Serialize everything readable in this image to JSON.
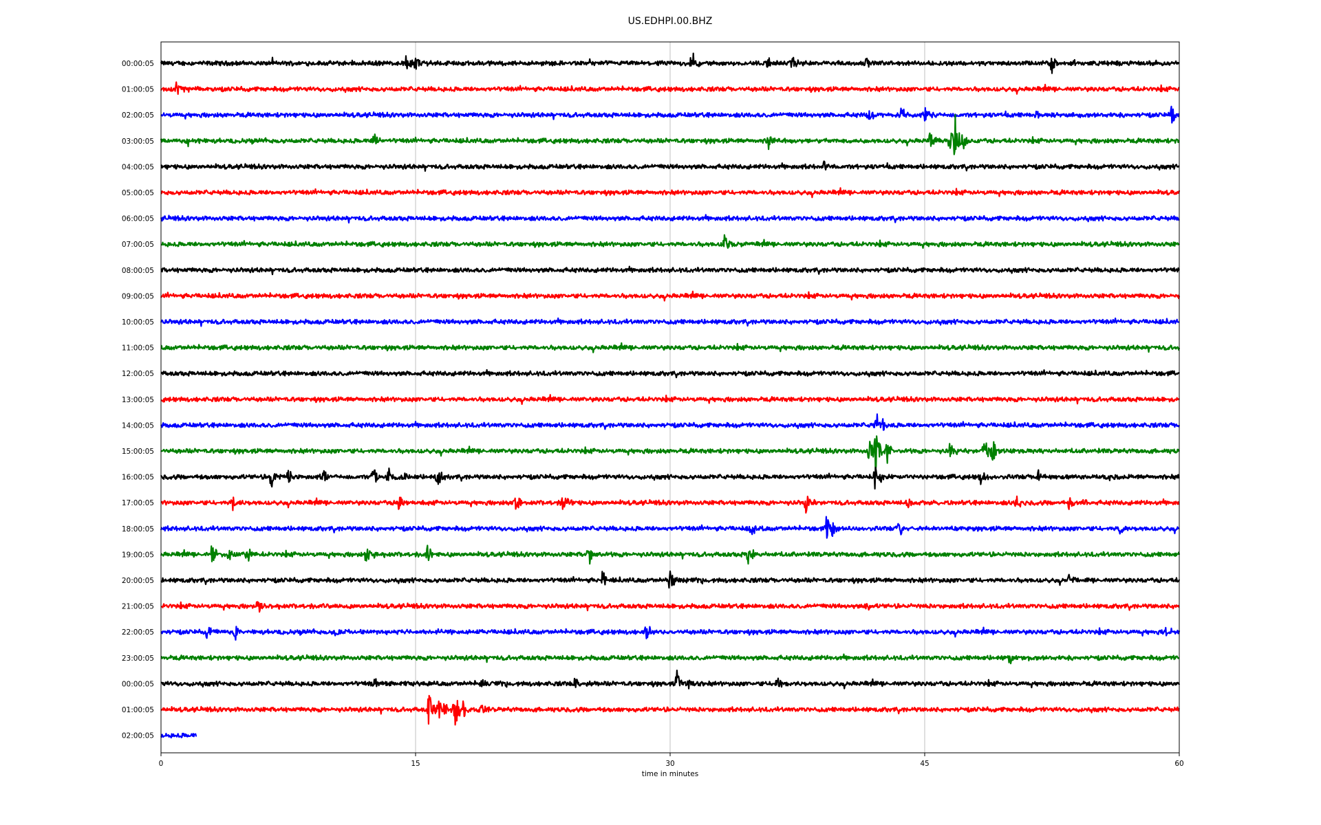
{
  "chart_data": {
    "type": "line",
    "title": "US.EDHPI.00.BHZ",
    "xlabel": "time in minutes",
    "ylabel": "",
    "xlim": [
      0,
      60
    ],
    "xticks": [
      "0",
      "15",
      "30",
      "45",
      "60"
    ],
    "xtick_values": [
      0,
      15,
      30,
      45,
      60
    ],
    "grid": "vertical",
    "trace_colors": [
      "#000000",
      "#ff0000",
      "#0000ff",
      "#008000"
    ],
    "series": [
      {
        "label": "00:00:05",
        "duration_min": 60,
        "events": [
          [
            14.5,
            0.6
          ],
          [
            15.0,
            0.5
          ],
          [
            31.3,
            0.9
          ],
          [
            35.7,
            0.5
          ],
          [
            37.2,
            0.5
          ],
          [
            41.6,
            0.5
          ],
          [
            52.5,
            0.8
          ]
        ]
      },
      {
        "label": "01:00:05",
        "duration_min": 60,
        "events": [
          [
            0.9,
            0.6
          ]
        ]
      },
      {
        "label": "02:00:05",
        "duration_min": 60,
        "events": [
          [
            41.7,
            0.5
          ],
          [
            43.6,
            0.4
          ],
          [
            45.0,
            0.6
          ],
          [
            51.6,
            0.5
          ],
          [
            59.5,
            0.8
          ]
        ]
      },
      {
        "label": "03:00:05",
        "duration_min": 60,
        "events": [
          [
            1.6,
            0.4
          ],
          [
            12.6,
            0.6
          ],
          [
            35.8,
            0.6
          ],
          [
            45.3,
            0.6
          ],
          [
            46.5,
            1.0
          ],
          [
            46.8,
            2.1
          ],
          [
            47.2,
            0.8
          ]
        ]
      },
      {
        "label": "04:00:05",
        "duration_min": 60,
        "events": [
          [
            39.0,
            0.4
          ]
        ]
      },
      {
        "label": "05:00:05",
        "duration_min": 60,
        "events": []
      },
      {
        "label": "06:00:05",
        "duration_min": 60,
        "events": []
      },
      {
        "label": "07:00:05",
        "duration_min": 60,
        "events": [
          [
            33.2,
            0.6
          ]
        ]
      },
      {
        "label": "08:00:05",
        "duration_min": 60,
        "events": []
      },
      {
        "label": "09:00:05",
        "duration_min": 60,
        "events": []
      },
      {
        "label": "10:00:05",
        "duration_min": 60,
        "events": []
      },
      {
        "label": "11:00:05",
        "duration_min": 60,
        "events": []
      },
      {
        "label": "12:00:05",
        "duration_min": 60,
        "events": []
      },
      {
        "label": "13:00:05",
        "duration_min": 60,
        "events": []
      },
      {
        "label": "14:00:05",
        "duration_min": 60,
        "events": [
          [
            42.1,
            1.2
          ],
          [
            42.4,
            0.8
          ]
        ]
      },
      {
        "label": "15:00:05",
        "duration_min": 60,
        "events": [
          [
            41.7,
            0.9
          ],
          [
            42.1,
            1.5
          ],
          [
            42.8,
            0.8
          ],
          [
            46.5,
            0.5
          ],
          [
            48.5,
            0.9
          ],
          [
            49.0,
            0.8
          ]
        ]
      },
      {
        "label": "16:00:05",
        "duration_min": 60,
        "events": [
          [
            6.5,
            0.8
          ],
          [
            7.5,
            0.5
          ],
          [
            9.6,
            0.5
          ],
          [
            12.5,
            0.8
          ],
          [
            13.4,
            0.6
          ],
          [
            14.3,
            0.5
          ],
          [
            16.3,
            0.7
          ],
          [
            42.1,
            1.2
          ],
          [
            48.3,
            0.4
          ],
          [
            51.7,
            0.6
          ]
        ]
      },
      {
        "label": "17:00:05",
        "duration_min": 60,
        "events": [
          [
            4.2,
            0.5
          ],
          [
            14.0,
            0.6
          ],
          [
            20.9,
            0.6
          ],
          [
            23.7,
            0.6
          ],
          [
            38.0,
            0.6
          ],
          [
            44.0,
            0.6
          ],
          [
            50.4,
            0.6
          ],
          [
            53.5,
            0.7
          ],
          [
            54.3,
            0.5
          ]
        ]
      },
      {
        "label": "18:00:05",
        "duration_min": 60,
        "events": [
          [
            34.8,
            0.6
          ],
          [
            39.2,
            0.8
          ],
          [
            39.6,
            0.6
          ],
          [
            43.5,
            0.7
          ],
          [
            56.5,
            0.4
          ]
        ]
      },
      {
        "label": "19:00:05",
        "duration_min": 60,
        "events": [
          [
            3.0,
            0.8
          ],
          [
            4.0,
            0.6
          ],
          [
            5.1,
            0.5
          ],
          [
            12.1,
            0.6
          ],
          [
            15.7,
            0.6
          ],
          [
            25.2,
            0.8
          ],
          [
            34.6,
            0.7
          ]
        ]
      },
      {
        "label": "20:00:05",
        "duration_min": 60,
        "events": [
          [
            26.0,
            0.6
          ],
          [
            30.0,
            1.0
          ],
          [
            53.5,
            0.4
          ]
        ]
      },
      {
        "label": "21:00:05",
        "duration_min": 60,
        "events": [
          [
            5.7,
            0.6
          ],
          [
            41.5,
            0.4
          ]
        ]
      },
      {
        "label": "22:00:05",
        "duration_min": 60,
        "events": [
          [
            2.7,
            0.5
          ],
          [
            4.4,
            0.6
          ],
          [
            10.3,
            0.6
          ],
          [
            28.6,
            0.7
          ],
          [
            59.2,
            0.4
          ]
        ]
      },
      {
        "label": "23:00:05",
        "duration_min": 60,
        "events": [
          [
            50.0,
            0.4
          ]
        ]
      },
      {
        "label": "00:00:05",
        "duration_min": 60,
        "events": [
          [
            12.5,
            0.4
          ],
          [
            18.9,
            0.4
          ],
          [
            24.4,
            0.4
          ],
          [
            30.4,
            0.9
          ],
          [
            31.0,
            0.6
          ],
          [
            36.3,
            0.4
          ]
        ]
      },
      {
        "label": "01:00:05",
        "duration_min": 60,
        "events": [
          [
            15.8,
            1.4
          ],
          [
            16.4,
            0.9
          ],
          [
            16.7,
            0.7
          ],
          [
            17.3,
            1.6
          ],
          [
            17.8,
            0.6
          ],
          [
            18.8,
            0.5
          ]
        ]
      },
      {
        "label": "02:00:05",
        "duration_min": 2.1,
        "events": []
      }
    ]
  }
}
